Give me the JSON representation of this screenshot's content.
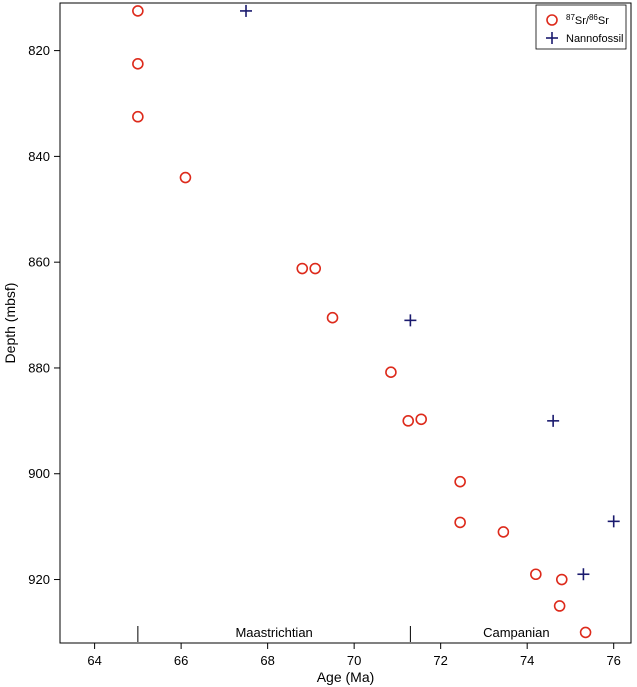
{
  "chart_data": {
    "type": "scatter",
    "xlabel": "Age (Ma)",
    "ylabel": "Depth (mbsf)",
    "xlim": [
      63.2,
      76.4
    ],
    "ylim": [
      932,
      811
    ],
    "y_inverted": true,
    "x_ticks": [
      64,
      66,
      68,
      70,
      72,
      74,
      76
    ],
    "y_ticks": [
      820,
      840,
      860,
      880,
      900,
      920
    ],
    "grid": false,
    "legend_position": "top-right",
    "series": [
      {
        "name": "87Sr/86Sr",
        "legend_label": {
          "sup1": "87",
          "part1": "Sr/",
          "sup2": "86",
          "part2": "Sr"
        },
        "marker": "circle",
        "color": "#dd2a1b",
        "points": [
          [
            65.0,
            812.5
          ],
          [
            65.0,
            822.5
          ],
          [
            65.0,
            832.5
          ],
          [
            66.1,
            844.0
          ],
          [
            68.8,
            861.2
          ],
          [
            69.1,
            861.2
          ],
          [
            69.5,
            870.5
          ],
          [
            70.85,
            880.8
          ],
          [
            71.25,
            890.0
          ],
          [
            71.55,
            889.7
          ],
          [
            72.45,
            901.5
          ],
          [
            72.45,
            909.2
          ],
          [
            73.45,
            911.0
          ],
          [
            74.2,
            919.0
          ],
          [
            74.8,
            920.0
          ],
          [
            74.75,
            925.0
          ],
          [
            75.35,
            930.0
          ]
        ]
      },
      {
        "name": "Nannofossil",
        "marker": "plus",
        "color": "#1a1a6e",
        "points": [
          [
            67.5,
            812.5
          ],
          [
            71.3,
            871.0
          ],
          [
            74.6,
            890.0
          ],
          [
            76.0,
            909.0
          ],
          [
            75.3,
            919.0
          ]
        ]
      }
    ],
    "stage_boundaries": [
      65.0,
      71.3
    ],
    "annotations": [
      {
        "label": "Maastrichtian",
        "x": 68.15
      },
      {
        "label": "Campanian",
        "x": 73.75
      }
    ]
  }
}
